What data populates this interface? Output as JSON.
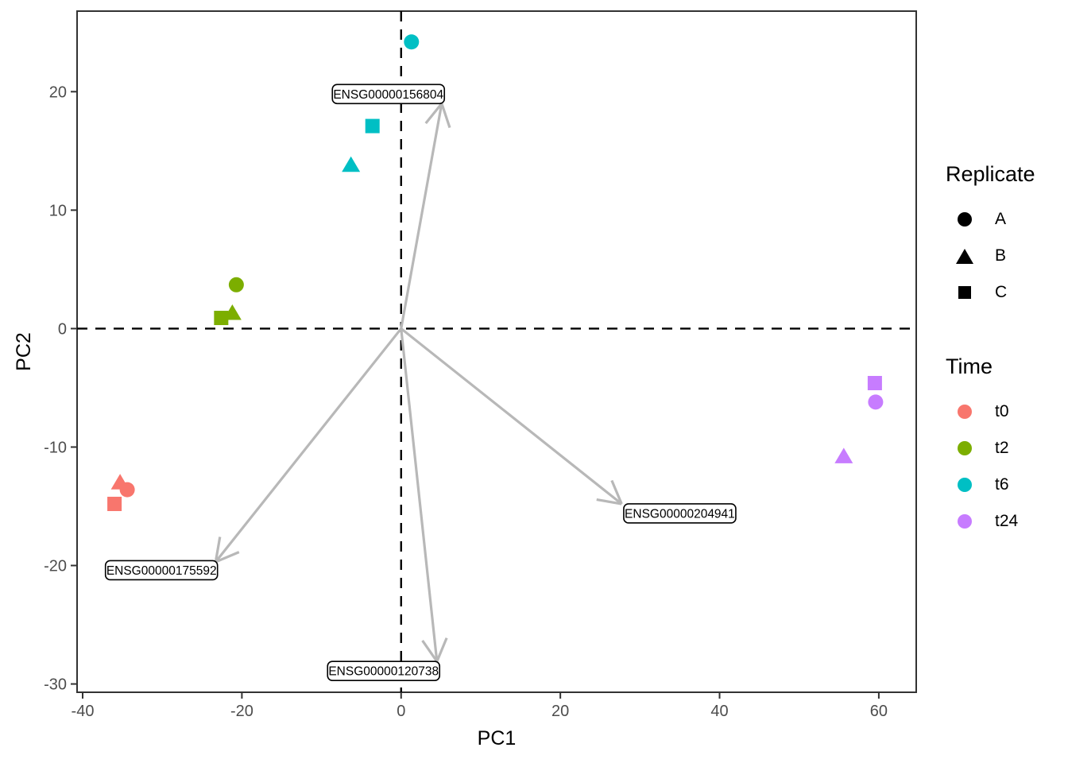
{
  "chart_data": {
    "type": "scatter",
    "title": "",
    "xlabel": "PC1",
    "ylabel": "PC2",
    "xlim": [
      -40.7,
      64.7
    ],
    "ylim": [
      -30.7,
      26.8
    ],
    "x_ticks": [
      -40,
      -20,
      0,
      20,
      40,
      60
    ],
    "y_ticks": [
      20,
      10,
      0,
      -10,
      -20,
      -30
    ],
    "grid": false,
    "reference_lines": {
      "vertical_x": 0,
      "horizontal_y": 0,
      "style": "dashed",
      "color": "#000000"
    },
    "arrow_color": "#B8B8B8",
    "series": [
      {
        "name": "t0",
        "color": "#F8766D",
        "points": [
          {
            "replicate": "A",
            "shape": "circle",
            "x": -34.4,
            "y": -13.6
          },
          {
            "replicate": "B",
            "shape": "triangle",
            "x": -35.3,
            "y": -13.0
          },
          {
            "replicate": "C",
            "shape": "square",
            "x": -36.0,
            "y": -14.8
          }
        ]
      },
      {
        "name": "t2",
        "color": "#7CAE00",
        "points": [
          {
            "replicate": "A",
            "shape": "circle",
            "x": -20.7,
            "y": 3.7
          },
          {
            "replicate": "B",
            "shape": "triangle",
            "x": -21.2,
            "y": 1.3
          },
          {
            "replicate": "C",
            "shape": "square",
            "x": -22.6,
            "y": 0.9
          }
        ]
      },
      {
        "name": "t6",
        "color": "#00BFC4",
        "points": [
          {
            "replicate": "A",
            "shape": "circle",
            "x": 1.3,
            "y": 24.2
          },
          {
            "replicate": "B",
            "shape": "triangle",
            "x": -6.3,
            "y": 13.8
          },
          {
            "replicate": "C",
            "shape": "square",
            "x": -3.6,
            "y": 17.1
          }
        ]
      },
      {
        "name": "t24",
        "color": "#C77CFF",
        "points": [
          {
            "replicate": "A",
            "shape": "circle",
            "x": 59.6,
            "y": -6.2
          },
          {
            "replicate": "B",
            "shape": "triangle",
            "x": 55.6,
            "y": -10.8
          },
          {
            "replicate": "C",
            "shape": "square",
            "x": 59.5,
            "y": -4.6
          }
        ]
      }
    ],
    "loadings": [
      {
        "gene": "ENSG00000156804",
        "tip_x": 5.1,
        "tip_y": 19.0,
        "label_x": -1.6,
        "label_y": 19.8
      },
      {
        "gene": "ENSG00000175592",
        "tip_x": -23.3,
        "tip_y": -19.7,
        "label_x": -30.1,
        "label_y": -20.4
      },
      {
        "gene": "ENSG00000204941",
        "tip_x": 27.7,
        "tip_y": -14.8,
        "label_x": 35.0,
        "label_y": -15.6
      },
      {
        "gene": "ENSG00000120738",
        "tip_x": 4.5,
        "tip_y": -28.1,
        "label_x": -2.2,
        "label_y": -28.9
      }
    ],
    "legend": {
      "replicate": {
        "title": "Replicate",
        "entries": [
          {
            "label": "A",
            "shape": "circle"
          },
          {
            "label": "B",
            "shape": "triangle"
          },
          {
            "label": "C",
            "shape": "square"
          }
        ]
      },
      "time": {
        "title": "Time",
        "entries": [
          {
            "label": "t0",
            "color": "#F8766D"
          },
          {
            "label": "t2",
            "color": "#7CAE00"
          },
          {
            "label": "t6",
            "color": "#00BFC4"
          },
          {
            "label": "t24",
            "color": "#C77CFF"
          }
        ]
      }
    }
  }
}
